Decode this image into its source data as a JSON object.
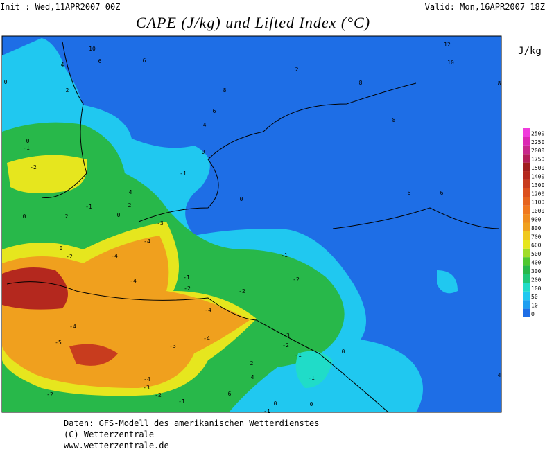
{
  "header": {
    "init": "Init : Wed,11APR2007 00Z",
    "valid": "Valid: Mon,16APR2007 18Z",
    "title": "CAPE (J/kg) und Lifted Index (°C)"
  },
  "legend": {
    "unit": "J/kg",
    "levels": [
      0,
      10,
      50,
      100,
      200,
      300,
      400,
      500,
      600,
      700,
      800,
      900,
      1000,
      1100,
      1200,
      1300,
      1400,
      1500,
      1750,
      2000,
      2250,
      2500
    ],
    "colors": [
      "#1e6ee6",
      "#1e9ef0",
      "#20c8f0",
      "#20dcc8",
      "#20c878",
      "#28b84a",
      "#50c830",
      "#a0dc28",
      "#e6e61e",
      "#f0c81e",
      "#f0a01e",
      "#f08c1e",
      "#f0781e",
      "#e6641e",
      "#dc501e",
      "#c83c1e",
      "#b4281e",
      "#a01e1e",
      "#b41e5a",
      "#c8288c",
      "#dc28b4",
      "#f03cdc"
    ]
  },
  "contour_labels": [
    10,
    4,
    6,
    6,
    2,
    0,
    8,
    6,
    4,
    2,
    8,
    12,
    10,
    8,
    8,
    6,
    6,
    0,
    -1,
    -2,
    0,
    -1,
    4,
    2,
    -1,
    2,
    0,
    0,
    0,
    -3,
    -4,
    -4,
    0,
    -2,
    -4,
    -1,
    -2,
    -2,
    -1,
    -2,
    -4,
    -4,
    -5,
    -3,
    -4,
    -3,
    -2,
    -1,
    0,
    2,
    4,
    -4,
    -3,
    -2,
    -2,
    -1,
    6,
    0,
    -1,
    0,
    -1,
    4
  ],
  "footer": [
    "Daten: GFS-Modell des amerikanischen Wetterdienstes",
    "(C) Wetterzentrale",
    "www.wetterzentrale.de"
  ]
}
